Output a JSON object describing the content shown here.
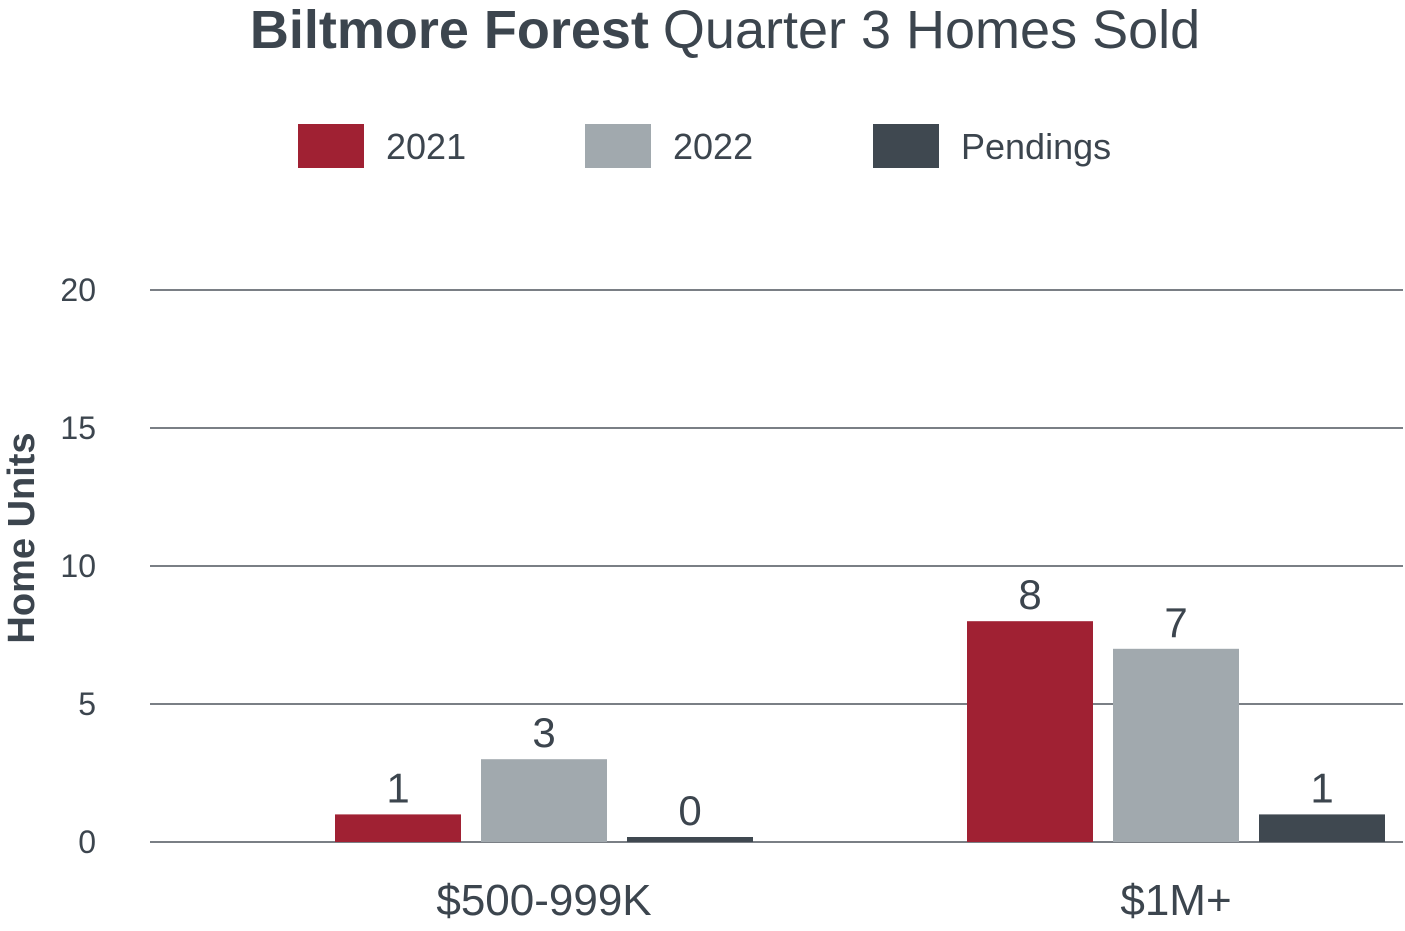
{
  "chart_data": {
    "type": "bar",
    "title_bold": "Biltmore Forest",
    "title_rest": "Quarter 3 Homes Sold",
    "ylabel": "Home Units",
    "xlabel": "",
    "ylim": [
      0,
      20
    ],
    "yticks": [
      0,
      5,
      10,
      15,
      20
    ],
    "grid": true,
    "legend_position": "top",
    "categories": [
      "$500-999K",
      "$1M+"
    ],
    "series": [
      {
        "name": "2021",
        "color": "#a02133",
        "values": [
          1,
          8
        ]
      },
      {
        "name": "2022",
        "color": "#a1a9ae",
        "values": [
          3,
          7
        ]
      },
      {
        "name": "Pendings",
        "color": "#3f4850",
        "values": [
          0,
          1
        ]
      }
    ]
  }
}
